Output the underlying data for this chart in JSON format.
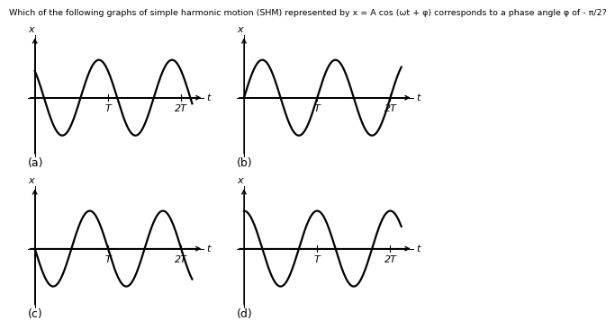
{
  "title": "Which of the following graphs of simple harmonic motion (SHM) represented by x = A cos (ωt + φ) corresponds to a phase angle φ of - π/2?",
  "panels": [
    {
      "label": "(a)",
      "phase": 0.7853981
    },
    {
      "label": "(b)",
      "phase": -1.5707963
    },
    {
      "label": "(c)",
      "phase": 1.5707963
    },
    {
      "label": "(d)",
      "phase": 0.0
    }
  ],
  "amplitude": 1.0,
  "omega": 6.2831853,
  "t_max": 2.15,
  "T_label": "T",
  "T_val": 1.0,
  "twoT_label": "2T",
  "twoT_val": 2.0,
  "t_label": "t",
  "x_label": "x",
  "line_color": "#000000",
  "bg_color": "#ffffff",
  "title_fontsize": 6.8,
  "panel_label_fontsize": 9,
  "tick_label_fontsize": 8,
  "linewidth": 1.6
}
